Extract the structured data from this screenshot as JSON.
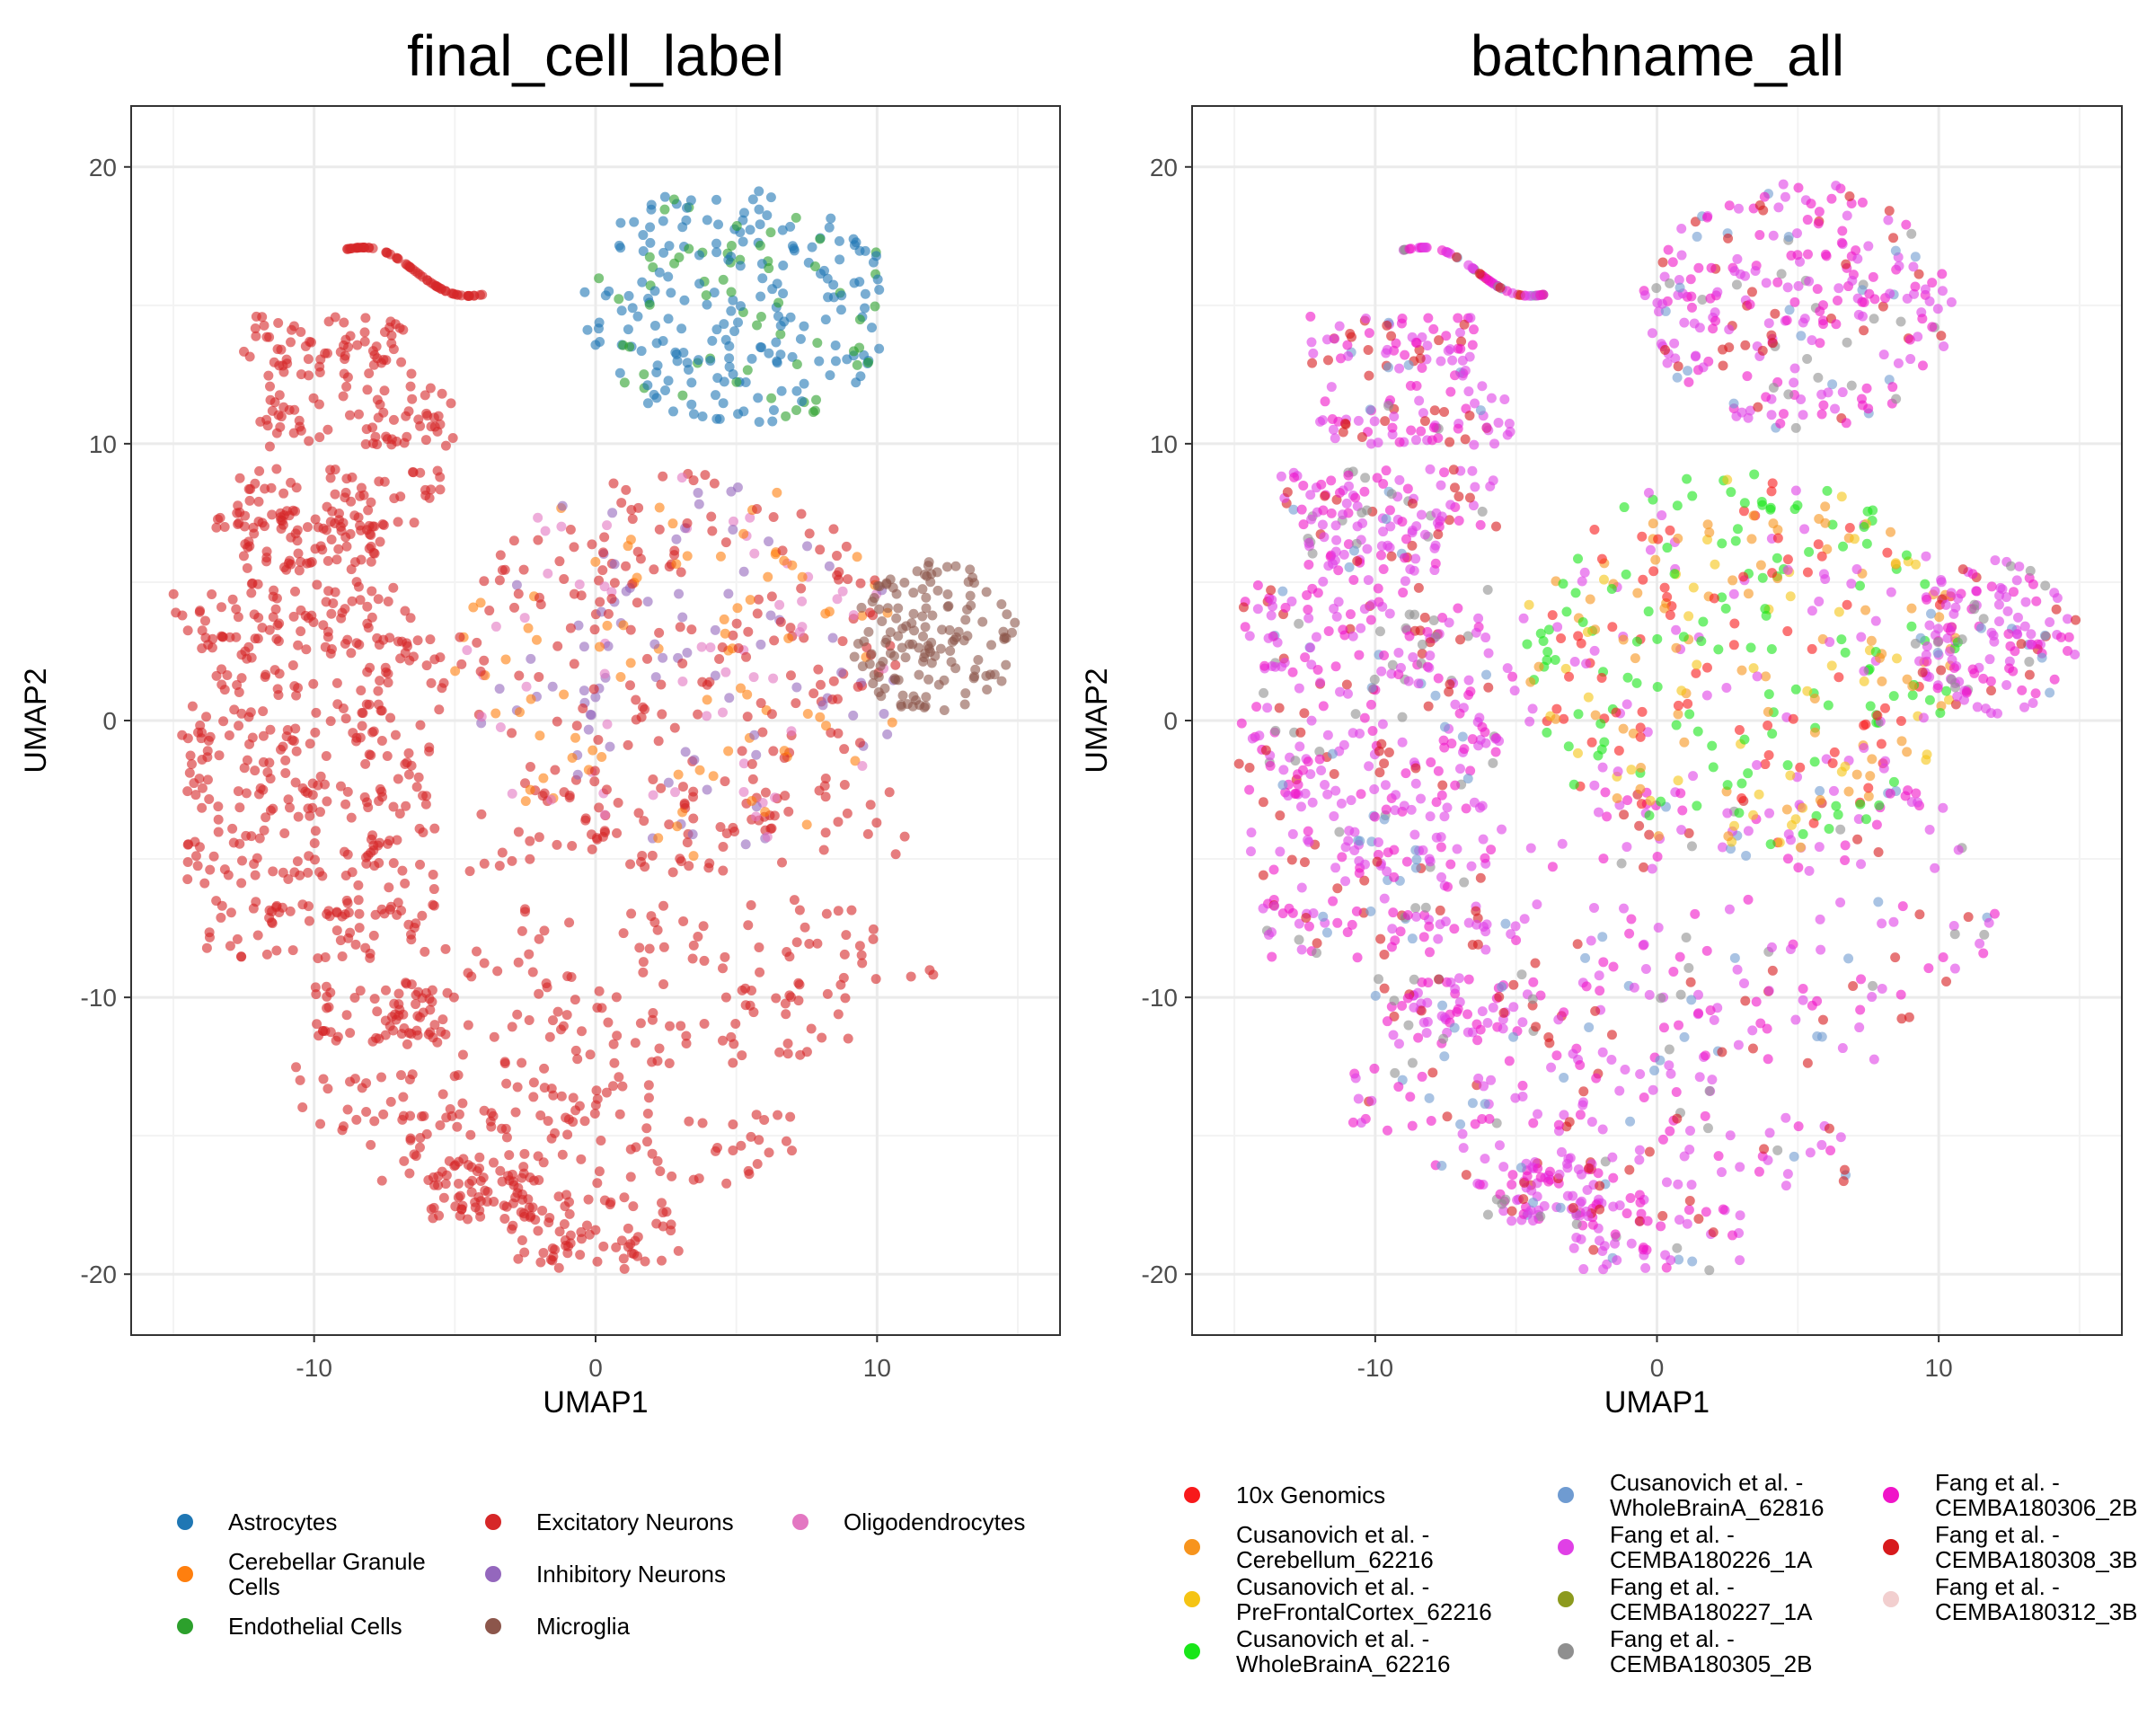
{
  "chart_data": [
    {
      "type": "scatter",
      "title": "final_cell_label",
      "xlabel": "UMAP1",
      "ylabel": "UMAP2",
      "xlim": [
        -16.5,
        16.5
      ],
      "ylim": [
        -22.2,
        22.2
      ],
      "xticks": [
        -10,
        0,
        10
      ],
      "yticks": [
        -20,
        -10,
        0,
        10,
        20
      ],
      "grid": true,
      "legend_position": "bottom",
      "series": [
        {
          "name": "Astrocytes",
          "color": "#1f77b4"
        },
        {
          "name": "Cerebellar Granule Cells",
          "color": "#ff7f0e"
        },
        {
          "name": "Endothelial Cells",
          "color": "#2ca02c"
        },
        {
          "name": "Excitatory Neurons",
          "color": "#d62728"
        },
        {
          "name": "Inhibitory Neurons",
          "color": "#9467bd"
        },
        {
          "name": "Microglia",
          "color": "#8c564b"
        },
        {
          "name": "Oligodendrocytes",
          "color": "#e377c2"
        }
      ]
    },
    {
      "type": "scatter",
      "title": "batchname_all",
      "xlabel": "UMAP1",
      "ylabel": "UMAP2",
      "xlim": [
        -16.5,
        16.5
      ],
      "ylim": [
        -22.2,
        22.2
      ],
      "xticks": [
        -10,
        0,
        10
      ],
      "yticks": [
        -20,
        -10,
        0,
        10,
        20
      ],
      "grid": true,
      "legend_position": "bottom",
      "series": [
        {
          "name": "10x Genomics",
          "color": "#f8191b"
        },
        {
          "name": "Cusanovich et al. - Cerebellum_62216",
          "color": "#f7941d"
        },
        {
          "name": "Cusanovich et al. - PreFrontalCortex_62216",
          "color": "#f5c414"
        },
        {
          "name": "Cusanovich et al. - WholeBrainA_62216",
          "color": "#19e619"
        },
        {
          "name": "Cusanovich et al. - WholeBrainA_62816",
          "color": "#6f9bd1"
        },
        {
          "name": "Fang et al. - CEMBA180226_1A",
          "color": "#e040e6"
        },
        {
          "name": "Fang et al. - CEMBA180227_1A",
          "color": "#8c9a1e"
        },
        {
          "name": "Fang et al. - CEMBA180305_2B",
          "color": "#8f8f8f"
        },
        {
          "name": "Fang et al. - CEMBA180306_2B",
          "color": "#f014c8"
        },
        {
          "name": "Fang et al. - CEMBA180308_3B",
          "color": "#d7191c"
        },
        {
          "name": "Fang et al. - CEMBA180312_3B",
          "color": "#f2cfcf"
        }
      ]
    }
  ]
}
